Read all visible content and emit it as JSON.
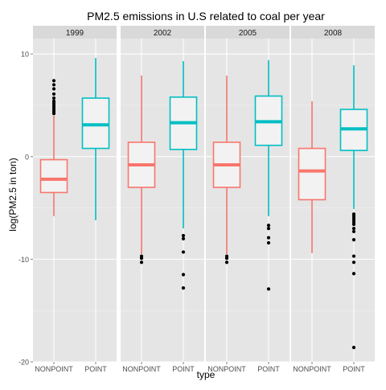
{
  "chart_data": {
    "type": "boxplot",
    "title": "PM2.5 emissions in U.S related to coal per year",
    "xlabel": "type",
    "ylabel": "log(PM2.5 in ton)",
    "ylim": [
      -20,
      11.5
    ],
    "y_ticks": [
      -20,
      -10,
      0,
      10
    ],
    "categories": [
      "NONPOINT",
      "POINT"
    ],
    "grid": true,
    "legend": "none",
    "colors": {
      "NONPOINT": "#F8766D",
      "POINT": "#00BFC4"
    },
    "panels": [
      {
        "facet": "1999",
        "boxes": [
          {
            "type": "NONPOINT",
            "whisker_low": -5.8,
            "q1": -3.5,
            "median": -2.2,
            "q3": -0.3,
            "whisker_high": 4.0,
            "outliers": [
              4.2,
              4.4,
              4.6,
              4.8,
              5.0,
              5.2,
              5.4,
              5.7,
              6.1,
              6.6,
              7.0,
              7.4
            ]
          },
          {
            "type": "POINT",
            "whisker_low": -6.2,
            "q1": 0.8,
            "median": 3.1,
            "q3": 5.7,
            "whisker_high": 9.6,
            "outliers": []
          }
        ]
      },
      {
        "facet": "2002",
        "boxes": [
          {
            "type": "NONPOINT",
            "whisker_low": -9.5,
            "q1": -3.0,
            "median": -0.8,
            "q3": 1.4,
            "whisker_high": 7.9,
            "outliers": [
              -9.7,
              -9.9,
              -10.3
            ]
          },
          {
            "type": "POINT",
            "whisker_low": -7.0,
            "q1": 0.7,
            "median": 3.3,
            "q3": 5.8,
            "whisker_high": 9.3,
            "outliers": [
              -7.7,
              -8.0,
              -9.3,
              -11.5,
              -12.8
            ]
          }
        ]
      },
      {
        "facet": "2005",
        "boxes": [
          {
            "type": "NONPOINT",
            "whisker_low": -9.5,
            "q1": -3.0,
            "median": -0.8,
            "q3": 1.4,
            "whisker_high": 7.9,
            "outliers": [
              -9.7,
              -9.9,
              -10.3
            ]
          },
          {
            "type": "POINT",
            "whisker_low": -5.8,
            "q1": 1.1,
            "median": 3.4,
            "q3": 5.9,
            "whisker_high": 9.4,
            "outliers": [
              -6.7,
              -7.0,
              -7.9,
              -8.4,
              -12.9
            ]
          }
        ]
      },
      {
        "facet": "2008",
        "boxes": [
          {
            "type": "NONPOINT",
            "whisker_low": -9.4,
            "q1": -4.2,
            "median": -1.4,
            "q3": 0.8,
            "whisker_high": 5.4,
            "outliers": []
          },
          {
            "type": "POINT",
            "whisker_low": -5.1,
            "q1": 0.6,
            "median": 2.7,
            "q3": 4.6,
            "whisker_high": 8.9,
            "outliers": [
              -5.6,
              -5.8,
              -6.0,
              -6.2,
              -6.4,
              -6.6,
              -7.0,
              -7.3,
              -8.1,
              -9.7,
              -10.3,
              -11.4,
              -18.6
            ]
          }
        ]
      }
    ]
  }
}
